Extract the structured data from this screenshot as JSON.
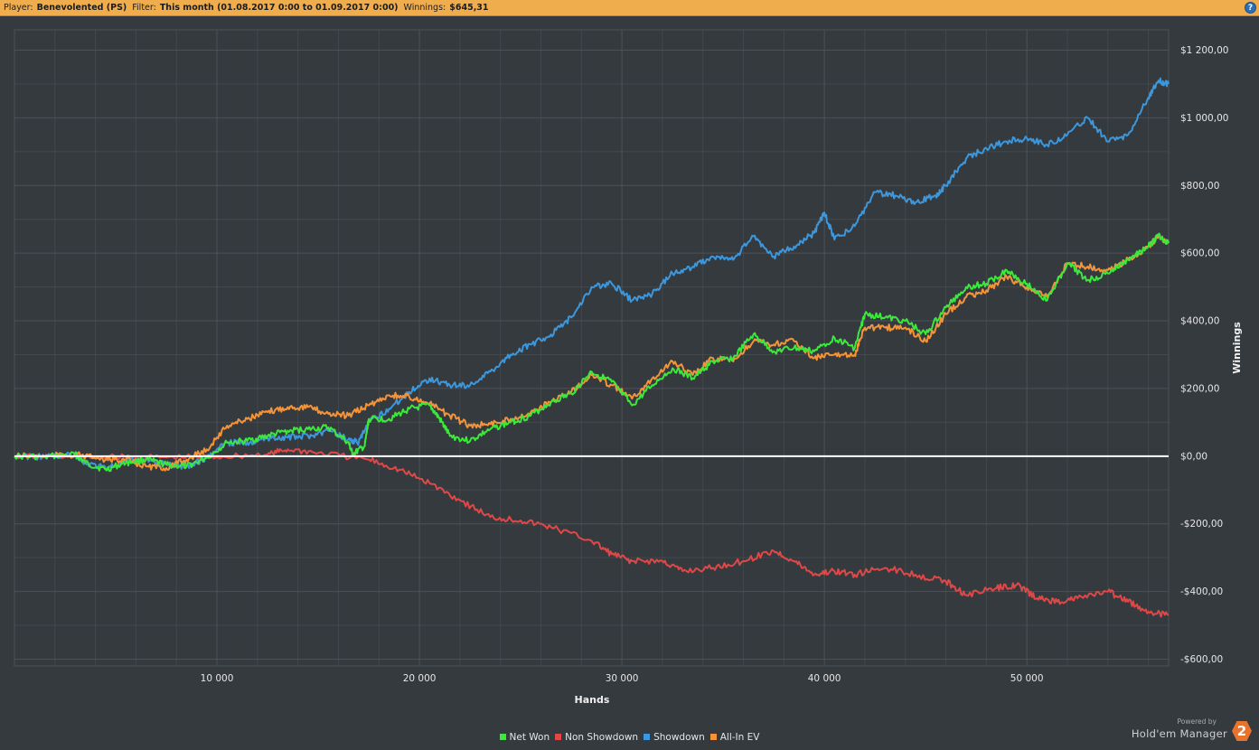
{
  "header": {
    "player_label": "Player:",
    "player_value": "Benevolented (PS)",
    "filter_label": "Filter:",
    "filter_value": "This month (01.08.2017 0:00 to 01.09.2017 0:00)",
    "winnings_label": "Winnings:",
    "winnings_value": "$645,31",
    "help_glyph": "?"
  },
  "branding": {
    "powered_by": "Powered by",
    "name": "Hold'em Manager",
    "logo_text": "2"
  },
  "colors": {
    "background": "#353a3f",
    "header_bar": "#f0ad4e",
    "grid": "#4d5257",
    "zero_line": "#ffffff",
    "net_won": "#3de83d",
    "non_showdown": "#e04848",
    "showdown": "#3c97dc",
    "all_in_ev": "#f4943a"
  },
  "chart_data": {
    "type": "line",
    "xlabel": "Hands",
    "ylabel": "Winnings",
    "xlim": [
      0,
      57000
    ],
    "ylim": [
      -620,
      1260
    ],
    "x_ticks": [
      10000,
      20000,
      30000,
      40000,
      50000
    ],
    "x_tick_labels": [
      "10 000",
      "20 000",
      "30 000",
      "40 000",
      "50 000"
    ],
    "y_ticks": [
      1200,
      1000,
      800,
      600,
      400,
      200,
      0,
      -200,
      -400,
      -600
    ],
    "y_tick_labels": [
      "$1 200,00",
      "$1 000,00",
      "$800,00",
      "$600,00",
      "$400,00",
      "$200,00",
      "$0,00",
      "-$200,00",
      "-$400,00",
      "-$600,00"
    ],
    "grid": true,
    "legend_position": "bottom",
    "series": [
      {
        "name": "Net Won",
        "color_key": "net_won",
        "points": [
          [
            0,
            0
          ],
          [
            1500,
            -2
          ],
          [
            3000,
            5
          ],
          [
            3500,
            -20
          ],
          [
            4500,
            -40
          ],
          [
            5500,
            -20
          ],
          [
            6500,
            -10
          ],
          [
            7500,
            -25
          ],
          [
            8500,
            -30
          ],
          [
            9500,
            -5
          ],
          [
            10500,
            40
          ],
          [
            11500,
            45
          ],
          [
            12500,
            60
          ],
          [
            13500,
            75
          ],
          [
            14500,
            80
          ],
          [
            15500,
            85
          ],
          [
            16500,
            40
          ],
          [
            16700,
            5
          ],
          [
            17300,
            30
          ],
          [
            17500,
            110
          ],
          [
            18500,
            110
          ],
          [
            19500,
            140
          ],
          [
            20500,
            150
          ],
          [
            21000,
            110
          ],
          [
            21500,
            60
          ],
          [
            22500,
            45
          ],
          [
            23500,
            80
          ],
          [
            24500,
            100
          ],
          [
            25500,
            120
          ],
          [
            26500,
            160
          ],
          [
            27500,
            185
          ],
          [
            28500,
            250
          ],
          [
            29500,
            220
          ],
          [
            30500,
            150
          ],
          [
            31500,
            210
          ],
          [
            32500,
            260
          ],
          [
            33500,
            230
          ],
          [
            34500,
            280
          ],
          [
            35500,
            290
          ],
          [
            36500,
            360
          ],
          [
            37500,
            310
          ],
          [
            38500,
            320
          ],
          [
            39500,
            310
          ],
          [
            40500,
            350
          ],
          [
            41500,
            320
          ],
          [
            42000,
            420
          ],
          [
            43000,
            410
          ],
          [
            44000,
            400
          ],
          [
            45000,
            360
          ],
          [
            46000,
            440
          ],
          [
            47000,
            500
          ],
          [
            48000,
            510
          ],
          [
            49000,
            550
          ],
          [
            50000,
            510
          ],
          [
            51000,
            460
          ],
          [
            52000,
            570
          ],
          [
            53000,
            520
          ],
          [
            54000,
            540
          ],
          [
            55000,
            580
          ],
          [
            56000,
            620
          ],
          [
            56500,
            650
          ],
          [
            57000,
            630
          ]
        ]
      },
      {
        "name": "Non Showdown",
        "color_key": "non_showdown",
        "points": [
          [
            0,
            0
          ],
          [
            2500,
            -2
          ],
          [
            5000,
            -3
          ],
          [
            7500,
            -4
          ],
          [
            10000,
            -2
          ],
          [
            12500,
            5
          ],
          [
            13500,
            20
          ],
          [
            15000,
            10
          ],
          [
            17500,
            -10
          ],
          [
            19000,
            -40
          ],
          [
            20500,
            -80
          ],
          [
            22000,
            -130
          ],
          [
            23500,
            -180
          ],
          [
            25000,
            -190
          ],
          [
            26500,
            -210
          ],
          [
            28500,
            -250
          ],
          [
            29500,
            -290
          ],
          [
            30500,
            -310
          ],
          [
            32000,
            -310
          ],
          [
            33000,
            -340
          ],
          [
            34500,
            -330
          ],
          [
            36000,
            -310
          ],
          [
            37500,
            -280
          ],
          [
            38500,
            -310
          ],
          [
            39500,
            -350
          ],
          [
            40500,
            -340
          ],
          [
            41500,
            -350
          ],
          [
            43000,
            -330
          ],
          [
            44500,
            -350
          ],
          [
            46000,
            -370
          ],
          [
            47000,
            -410
          ],
          [
            48500,
            -390
          ],
          [
            49500,
            -380
          ],
          [
            50500,
            -420
          ],
          [
            51500,
            -430
          ],
          [
            52500,
            -420
          ],
          [
            54000,
            -400
          ],
          [
            55000,
            -430
          ],
          [
            56000,
            -460
          ],
          [
            57000,
            -470
          ]
        ]
      },
      {
        "name": "Showdown",
        "color_key": "showdown",
        "points": [
          [
            0,
            0
          ],
          [
            1500,
            -2
          ],
          [
            3000,
            5
          ],
          [
            3500,
            -20
          ],
          [
            4500,
            -35
          ],
          [
            5500,
            -15
          ],
          [
            6500,
            -10
          ],
          [
            7500,
            -25
          ],
          [
            8500,
            -30
          ],
          [
            9500,
            -5
          ],
          [
            10500,
            40
          ],
          [
            11500,
            40
          ],
          [
            12500,
            55
          ],
          [
            13500,
            55
          ],
          [
            14500,
            60
          ],
          [
            15500,
            75
          ],
          [
            16500,
            50
          ],
          [
            17000,
            40
          ],
          [
            17500,
            100
          ],
          [
            18500,
            140
          ],
          [
            19500,
            190
          ],
          [
            20500,
            230
          ],
          [
            21500,
            210
          ],
          [
            22500,
            210
          ],
          [
            23500,
            250
          ],
          [
            24500,
            300
          ],
          [
            25500,
            330
          ],
          [
            26500,
            360
          ],
          [
            27500,
            410
          ],
          [
            28500,
            500
          ],
          [
            29500,
            510
          ],
          [
            30500,
            460
          ],
          [
            31500,
            480
          ],
          [
            32500,
            540
          ],
          [
            33500,
            560
          ],
          [
            34500,
            590
          ],
          [
            35500,
            580
          ],
          [
            36500,
            650
          ],
          [
            37500,
            590
          ],
          [
            38500,
            620
          ],
          [
            39500,
            660
          ],
          [
            40000,
            720
          ],
          [
            40500,
            640
          ],
          [
            41500,
            680
          ],
          [
            42500,
            780
          ],
          [
            43500,
            770
          ],
          [
            44500,
            750
          ],
          [
            45500,
            770
          ],
          [
            46000,
            800
          ],
          [
            47000,
            880
          ],
          [
            48000,
            910
          ],
          [
            49000,
            930
          ],
          [
            50000,
            940
          ],
          [
            51000,
            920
          ],
          [
            52000,
            950
          ],
          [
            53000,
            1000
          ],
          [
            54000,
            930
          ],
          [
            55000,
            950
          ],
          [
            56000,
            1060
          ],
          [
            56500,
            1110
          ],
          [
            57000,
            1100
          ]
        ]
      },
      {
        "name": "All-In EV",
        "color_key": "all_in_ev",
        "points": [
          [
            0,
            0
          ],
          [
            1500,
            0
          ],
          [
            3000,
            5
          ],
          [
            4500,
            -10
          ],
          [
            5500,
            -10
          ],
          [
            6500,
            -30
          ],
          [
            7500,
            -35
          ],
          [
            8500,
            -10
          ],
          [
            9500,
            20
          ],
          [
            10500,
            90
          ],
          [
            11500,
            110
          ],
          [
            12500,
            130
          ],
          [
            13500,
            145
          ],
          [
            14500,
            145
          ],
          [
            15500,
            125
          ],
          [
            16500,
            120
          ],
          [
            17500,
            150
          ],
          [
            18500,
            180
          ],
          [
            19500,
            175
          ],
          [
            20500,
            155
          ],
          [
            21500,
            120
          ],
          [
            22500,
            90
          ],
          [
            23500,
            95
          ],
          [
            24500,
            110
          ],
          [
            25500,
            130
          ],
          [
            26500,
            160
          ],
          [
            27500,
            190
          ],
          [
            28500,
            240
          ],
          [
            29500,
            210
          ],
          [
            30500,
            170
          ],
          [
            31500,
            230
          ],
          [
            32500,
            280
          ],
          [
            33500,
            240
          ],
          [
            34500,
            290
          ],
          [
            35500,
            280
          ],
          [
            36500,
            340
          ],
          [
            37500,
            330
          ],
          [
            38500,
            340
          ],
          [
            39500,
            290
          ],
          [
            40500,
            300
          ],
          [
            41500,
            300
          ],
          [
            42000,
            380
          ],
          [
            43000,
            380
          ],
          [
            44000,
            380
          ],
          [
            45000,
            340
          ],
          [
            46000,
            420
          ],
          [
            47000,
            470
          ],
          [
            48000,
            490
          ],
          [
            49000,
            530
          ],
          [
            50000,
            500
          ],
          [
            51000,
            470
          ],
          [
            52000,
            570
          ],
          [
            53000,
            560
          ],
          [
            54000,
            550
          ],
          [
            55000,
            580
          ],
          [
            56000,
            620
          ],
          [
            56500,
            650
          ],
          [
            57000,
            630
          ]
        ]
      }
    ]
  }
}
